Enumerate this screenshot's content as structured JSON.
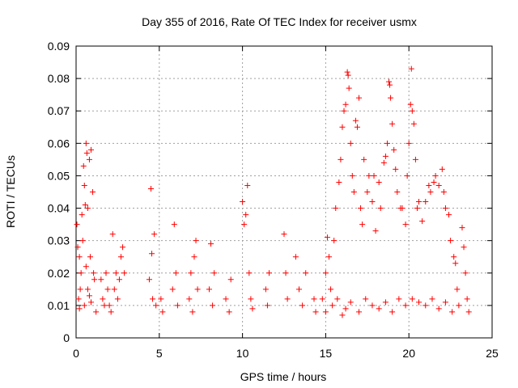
{
  "chart_data": {
    "type": "scatter",
    "title": "Day 355 of 2016, Rate Of TEC Index for receiver usmx",
    "xlabel": "GPS time / hours",
    "ylabel": "ROTI / TECUs",
    "xlim": [
      0,
      25
    ],
    "ylim": [
      0,
      0.09
    ],
    "x_ticks": [
      "0",
      "5",
      "10",
      "15",
      "20",
      "25"
    ],
    "y_ticks": [
      "0",
      "0.01",
      "0.02",
      "0.03",
      "0.04",
      "0.05",
      "0.06",
      "0.07",
      "0.08",
      "0.09"
    ],
    "grid": true,
    "marker": "+",
    "color": "#ff0000",
    "series": [
      {
        "points": [
          [
            0.05,
            0.035
          ],
          [
            0.1,
            0.028
          ],
          [
            0.15,
            0.012
          ],
          [
            0.2,
            0.009
          ],
          [
            0.3,
            0.02
          ],
          [
            0.35,
            0.038
          ],
          [
            0.4,
            0.03
          ],
          [
            0.45,
            0.053
          ],
          [
            0.5,
            0.047
          ],
          [
            0.55,
            0.041
          ],
          [
            0.6,
            0.06
          ],
          [
            0.65,
            0.057
          ],
          [
            0.7,
            0.04
          ],
          [
            0.8,
            0.055
          ],
          [
            0.85,
            0.025
          ],
          [
            0.9,
            0.058
          ],
          [
            1.0,
            0.045
          ],
          [
            1.05,
            0.02
          ],
          [
            0.2,
            0.025
          ],
          [
            0.25,
            0.015
          ],
          [
            0.5,
            0.01
          ],
          [
            0.6,
            0.022
          ],
          [
            0.7,
            0.015
          ],
          [
            0.8,
            0.013
          ],
          [
            0.9,
            0.011
          ],
          [
            1.1,
            0.018
          ],
          [
            1.2,
            0.008
          ],
          [
            1.5,
            0.018
          ],
          [
            1.6,
            0.012
          ],
          [
            1.7,
            0.01
          ],
          [
            1.8,
            0.02
          ],
          [
            1.9,
            0.015
          ],
          [
            2.0,
            0.01
          ],
          [
            2.1,
            0.008
          ],
          [
            2.2,
            0.032
          ],
          [
            2.3,
            0.015
          ],
          [
            2.4,
            0.02
          ],
          [
            2.5,
            0.012
          ],
          [
            2.6,
            0.018
          ],
          [
            2.7,
            0.025
          ],
          [
            2.8,
            0.028
          ],
          [
            2.9,
            0.02
          ],
          [
            4.4,
            0.018
          ],
          [
            4.5,
            0.046
          ],
          [
            4.55,
            0.026
          ],
          [
            4.6,
            0.012
          ],
          [
            4.7,
            0.032
          ],
          [
            4.8,
            0.01
          ],
          [
            5.1,
            0.012
          ],
          [
            5.2,
            0.008
          ],
          [
            5.8,
            0.015
          ],
          [
            5.9,
            0.035
          ],
          [
            6.0,
            0.02
          ],
          [
            6.1,
            0.01
          ],
          [
            6.8,
            0.012
          ],
          [
            6.9,
            0.02
          ],
          [
            7.0,
            0.008
          ],
          [
            7.1,
            0.025
          ],
          [
            7.2,
            0.03
          ],
          [
            7.3,
            0.015
          ],
          [
            8.0,
            0.015
          ],
          [
            8.1,
            0.029
          ],
          [
            8.2,
            0.01
          ],
          [
            8.3,
            0.02
          ],
          [
            9.0,
            0.012
          ],
          [
            9.2,
            0.008
          ],
          [
            9.3,
            0.018
          ],
          [
            10.0,
            0.042
          ],
          [
            10.1,
            0.035
          ],
          [
            10.2,
            0.038
          ],
          [
            10.3,
            0.047
          ],
          [
            10.4,
            0.02
          ],
          [
            10.5,
            0.012
          ],
          [
            10.6,
            0.009
          ],
          [
            11.4,
            0.015
          ],
          [
            11.5,
            0.01
          ],
          [
            11.6,
            0.02
          ],
          [
            12.5,
            0.032
          ],
          [
            12.6,
            0.02
          ],
          [
            12.7,
            0.012
          ],
          [
            13.2,
            0.025
          ],
          [
            13.4,
            0.015
          ],
          [
            13.6,
            0.01
          ],
          [
            13.8,
            0.02
          ],
          [
            14.3,
            0.012
          ],
          [
            14.4,
            0.008
          ],
          [
            14.8,
            0.012
          ],
          [
            15.0,
            0.02
          ],
          [
            15.1,
            0.031
          ],
          [
            15.2,
            0.025
          ],
          [
            15.3,
            0.015
          ],
          [
            15.5,
            0.03
          ],
          [
            15.6,
            0.04
          ],
          [
            15.8,
            0.048
          ],
          [
            15.9,
            0.055
          ],
          [
            16.0,
            0.065
          ],
          [
            16.1,
            0.07
          ],
          [
            16.2,
            0.072
          ],
          [
            16.3,
            0.082
          ],
          [
            16.35,
            0.081
          ],
          [
            16.4,
            0.077
          ],
          [
            16.5,
            0.06
          ],
          [
            16.6,
            0.05
          ],
          [
            16.7,
            0.045
          ],
          [
            16.8,
            0.067
          ],
          [
            16.9,
            0.065
          ],
          [
            17.0,
            0.074
          ],
          [
            17.1,
            0.04
          ],
          [
            17.2,
            0.035
          ],
          [
            17.3,
            0.055
          ],
          [
            17.5,
            0.045
          ],
          [
            17.6,
            0.05
          ],
          [
            17.8,
            0.042
          ],
          [
            17.9,
            0.05
          ],
          [
            18.0,
            0.033
          ],
          [
            18.2,
            0.048
          ],
          [
            18.3,
            0.04
          ],
          [
            18.5,
            0.054
          ],
          [
            18.6,
            0.056
          ],
          [
            18.7,
            0.06
          ],
          [
            18.8,
            0.079
          ],
          [
            18.85,
            0.078
          ],
          [
            18.9,
            0.074
          ],
          [
            19.0,
            0.066
          ],
          [
            19.1,
            0.058
          ],
          [
            19.2,
            0.052
          ],
          [
            19.3,
            0.045
          ],
          [
            19.5,
            0.04
          ],
          [
            19.6,
            0.04
          ],
          [
            19.8,
            0.035
          ],
          [
            19.9,
            0.05
          ],
          [
            20.0,
            0.06
          ],
          [
            20.1,
            0.072
          ],
          [
            20.15,
            0.083
          ],
          [
            20.2,
            0.07
          ],
          [
            20.3,
            0.066
          ],
          [
            20.4,
            0.055
          ],
          [
            20.5,
            0.04
          ],
          [
            20.6,
            0.042
          ],
          [
            20.8,
            0.036
          ],
          [
            21.0,
            0.042
          ],
          [
            21.2,
            0.047
          ],
          [
            21.3,
            0.045
          ],
          [
            21.5,
            0.048
          ],
          [
            21.6,
            0.05
          ],
          [
            21.8,
            0.047
          ],
          [
            22.0,
            0.052
          ],
          [
            22.1,
            0.045
          ],
          [
            22.2,
            0.04
          ],
          [
            22.4,
            0.038
          ],
          [
            22.5,
            0.03
          ],
          [
            22.7,
            0.025
          ],
          [
            22.8,
            0.023
          ],
          [
            22.9,
            0.015
          ],
          [
            23.0,
            0.01
          ],
          [
            23.2,
            0.034
          ],
          [
            23.3,
            0.028
          ],
          [
            23.4,
            0.02
          ],
          [
            23.5,
            0.012
          ],
          [
            23.6,
            0.008
          ],
          [
            15.0,
            0.008
          ],
          [
            15.4,
            0.01
          ],
          [
            15.7,
            0.012
          ],
          [
            16.0,
            0.007
          ],
          [
            16.2,
            0.009
          ],
          [
            16.5,
            0.011
          ],
          [
            17.0,
            0.008
          ],
          [
            17.4,
            0.012
          ],
          [
            17.8,
            0.01
          ],
          [
            18.2,
            0.009
          ],
          [
            18.6,
            0.011
          ],
          [
            19.0,
            0.008
          ],
          [
            19.4,
            0.012
          ],
          [
            19.8,
            0.01
          ],
          [
            20.2,
            0.012
          ],
          [
            20.6,
            0.011
          ],
          [
            21.0,
            0.01
          ],
          [
            21.4,
            0.012
          ],
          [
            21.8,
            0.009
          ],
          [
            22.2,
            0.011
          ],
          [
            22.6,
            0.008
          ]
        ]
      }
    ]
  }
}
